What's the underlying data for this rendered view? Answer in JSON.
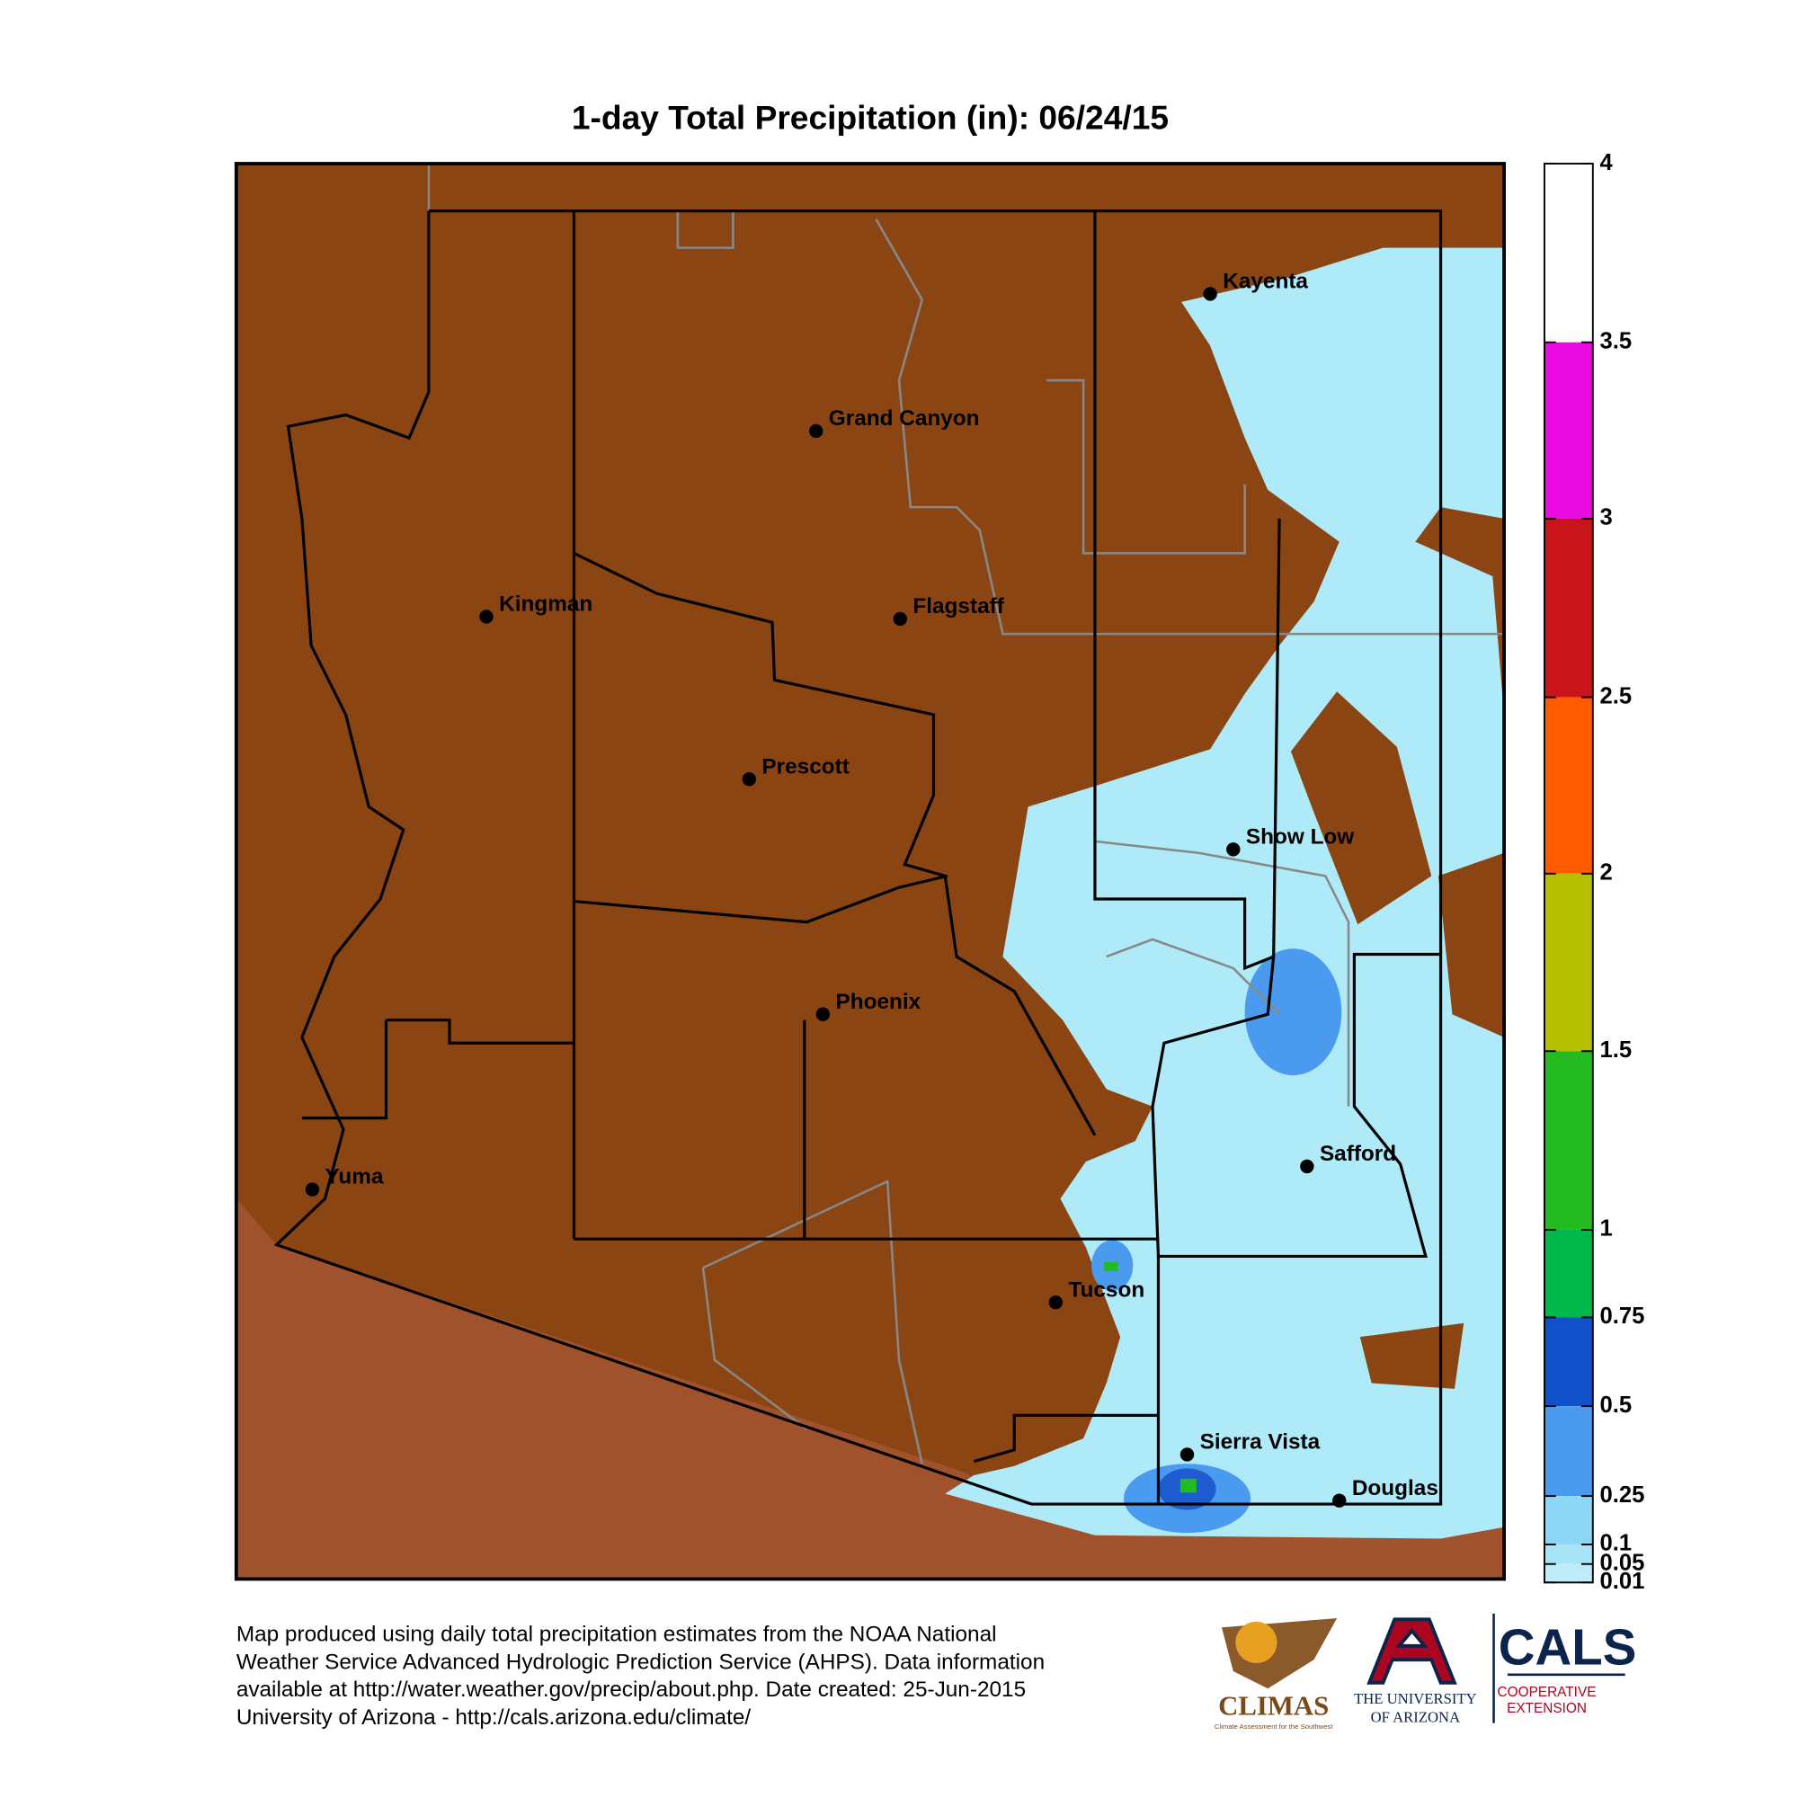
{
  "title": "1-day Total Precipitation (in): 06/24/15",
  "cities": [
    {
      "label": "Kayenta"
    },
    {
      "label": "Grand Canyon"
    },
    {
      "label": "Kingman"
    },
    {
      "label": "Flagstaff"
    },
    {
      "label": "Prescott"
    },
    {
      "label": "Show Low"
    },
    {
      "label": "Phoenix"
    },
    {
      "label": "Safford"
    },
    {
      "label": "Yuma"
    },
    {
      "label": "Tucson"
    },
    {
      "label": "Sierra Vista"
    },
    {
      "label": "Douglas"
    }
  ],
  "colorbar": {
    "ticks": [
      4,
      3.5,
      3,
      2.5,
      2,
      1.5,
      1,
      0.75,
      0.5,
      0.25,
      0.1,
      0.05,
      0.01
    ],
    "colors": [
      "#ffffff",
      "#e80ce0",
      "#c8141a",
      "#ff5a00",
      "#b4c000",
      "#22bb22",
      "#00b84a",
      "#1050c8",
      "#4a9af0",
      "#8cd7f5",
      "#a8e4f8",
      "#c0ecfa"
    ]
  },
  "footer": [
    "Map produced using daily total precipitation estimates from the NOAA National",
    "Weather Service Advanced Hydrologic Prediction Service (AHPS). Data information",
    "available at http://water.weather.gov/precip/about.php. Date created: 25-Jun-2015",
    "University of Arizona - http://cals.arizona.edu/climate/"
  ],
  "logos": {
    "climas": "CLIMAS",
    "climas_sub": "Climate Assessment for the Southwest",
    "ua1": "THE UNIVERSITY",
    "ua2": "OF ARIZONA",
    "cals": "CALS",
    "cals1": "COOPERATIVE",
    "cals2": "EXTENSION"
  }
}
